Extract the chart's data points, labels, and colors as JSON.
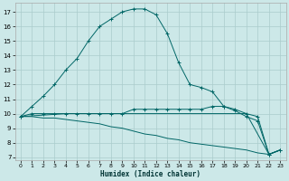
{
  "xlabel": "Humidex (Indice chaleur)",
  "background_color": "#cce8e8",
  "grid_color": "#aacccc",
  "line_color": "#006666",
  "xlim": [
    -0.5,
    23.5
  ],
  "ylim": [
    6.8,
    17.6
  ],
  "yticks": [
    7,
    8,
    9,
    10,
    11,
    12,
    13,
    14,
    15,
    16,
    17
  ],
  "xticks": [
    0,
    1,
    2,
    3,
    4,
    5,
    6,
    7,
    8,
    9,
    10,
    11,
    12,
    13,
    14,
    15,
    16,
    17,
    18,
    19,
    20,
    21,
    22,
    23
  ],
  "series": [
    {
      "x": [
        0,
        1,
        2,
        3,
        4,
        5,
        6,
        7,
        8,
        9,
        10,
        11,
        12,
        13,
        14,
        15,
        16,
        17,
        18,
        19,
        20,
        21,
        22,
        23
      ],
      "y": [
        9.8,
        10.5,
        11.2,
        12.0,
        13.0,
        13.8,
        15.0,
        16.0,
        16.5,
        17.0,
        17.2,
        17.2,
        16.8,
        15.5,
        13.5,
        12.0,
        11.8,
        11.5,
        10.5,
        10.2,
        9.8,
        9.5,
        7.2,
        7.5
      ],
      "marker": true
    },
    {
      "x": [
        0,
        1,
        2,
        3,
        4,
        5,
        6,
        7,
        8,
        9,
        10,
        11,
        12,
        13,
        14,
        15,
        16,
        17,
        18,
        19,
        20,
        21,
        22,
        23
      ],
      "y": [
        9.8,
        10.0,
        10.0,
        10.0,
        10.0,
        10.0,
        10.0,
        10.0,
        10.0,
        10.0,
        10.3,
        10.3,
        10.3,
        10.3,
        10.3,
        10.3,
        10.3,
        10.5,
        10.5,
        10.3,
        10.0,
        9.8,
        7.2,
        7.5
      ],
      "marker": true
    },
    {
      "x": [
        0,
        1,
        2,
        3,
        4,
        5,
        6,
        7,
        8,
        9,
        10,
        11,
        12,
        13,
        14,
        15,
        16,
        17,
        18,
        19,
        20,
        21,
        22,
        23
      ],
      "y": [
        9.8,
        9.8,
        9.7,
        9.7,
        9.6,
        9.5,
        9.4,
        9.3,
        9.1,
        9.0,
        8.8,
        8.6,
        8.5,
        8.3,
        8.2,
        8.0,
        7.9,
        7.8,
        7.7,
        7.6,
        7.5,
        7.3,
        7.2,
        7.5
      ],
      "marker": false
    },
    {
      "comment": "bottom line connecting 0->4->20->22->23",
      "x": [
        0,
        4,
        20,
        22,
        23
      ],
      "y": [
        9.8,
        10.0,
        10.0,
        7.2,
        7.5
      ],
      "marker": false
    }
  ]
}
